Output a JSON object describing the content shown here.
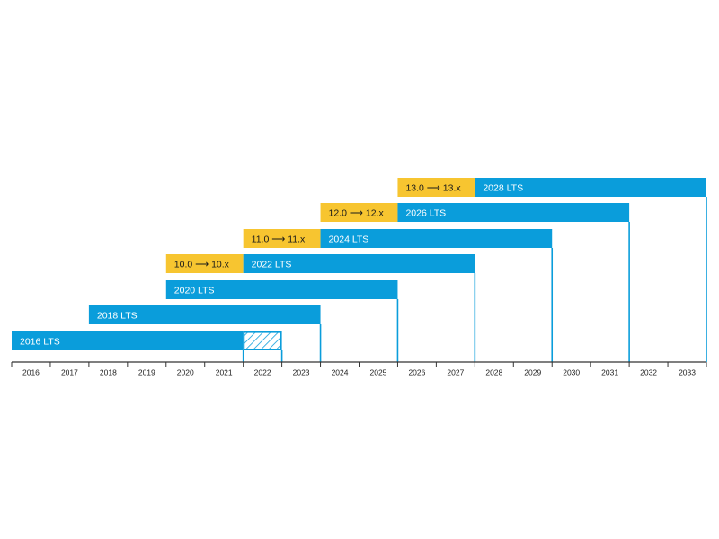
{
  "chart_data": {
    "type": "bar",
    "title": "",
    "xlabel": "",
    "ylabel": "",
    "x": [
      "2016",
      "2017",
      "2018",
      "2019",
      "2020",
      "2021",
      "2022",
      "2023",
      "2024",
      "2025",
      "2026",
      "2027",
      "2028",
      "2029",
      "2030",
      "2031",
      "2032",
      "2033"
    ],
    "xlim": [
      2016,
      2034
    ],
    "grid": false,
    "legend": "none",
    "colors": {
      "lts": "#0a9ddb",
      "feature": "#f7c530",
      "axis": "#333333",
      "tick_text": "#222222"
    },
    "rows": [
      {
        "label": "13.0 ⟶ 13.x",
        "kind": "feature",
        "start": 2026.0,
        "end": 2028.0
      },
      {
        "label": "2028 LTS",
        "kind": "lts",
        "start": 2028.0,
        "end": 2034.0
      },
      {
        "label": "12.0 ⟶ 12.x",
        "kind": "feature",
        "start": 2024.0,
        "end": 2026.0
      },
      {
        "label": "2026 LTS",
        "kind": "lts",
        "start": 2026.0,
        "end": 2032.0
      },
      {
        "label": "11.0 ⟶ 11.x",
        "kind": "feature",
        "start": 2022.0,
        "end": 2024.0
      },
      {
        "label": "2024 LTS",
        "kind": "lts",
        "start": 2024.0,
        "end": 2030.0
      },
      {
        "label": "10.0 ⟶ 10.x",
        "kind": "feature",
        "start": 2020.0,
        "end": 2022.0
      },
      {
        "label": "2022 LTS",
        "kind": "lts",
        "start": 2022.0,
        "end": 2028.0
      },
      {
        "label": "2020 LTS",
        "kind": "lts",
        "start": 2020.0,
        "end": 2026.0
      },
      {
        "label": "2018 LTS",
        "kind": "lts",
        "start": 2018.0,
        "end": 2024.0
      },
      {
        "label": "2016 LTS",
        "kind": "lts",
        "start": 2016.0,
        "end": 2022.0,
        "extended_end": 2023.0
      }
    ],
    "end_markers": [
      2022.0,
      2023.0,
      2024.0,
      2026.0,
      2028.0,
      2030.0,
      2032.0,
      2034.0
    ]
  }
}
